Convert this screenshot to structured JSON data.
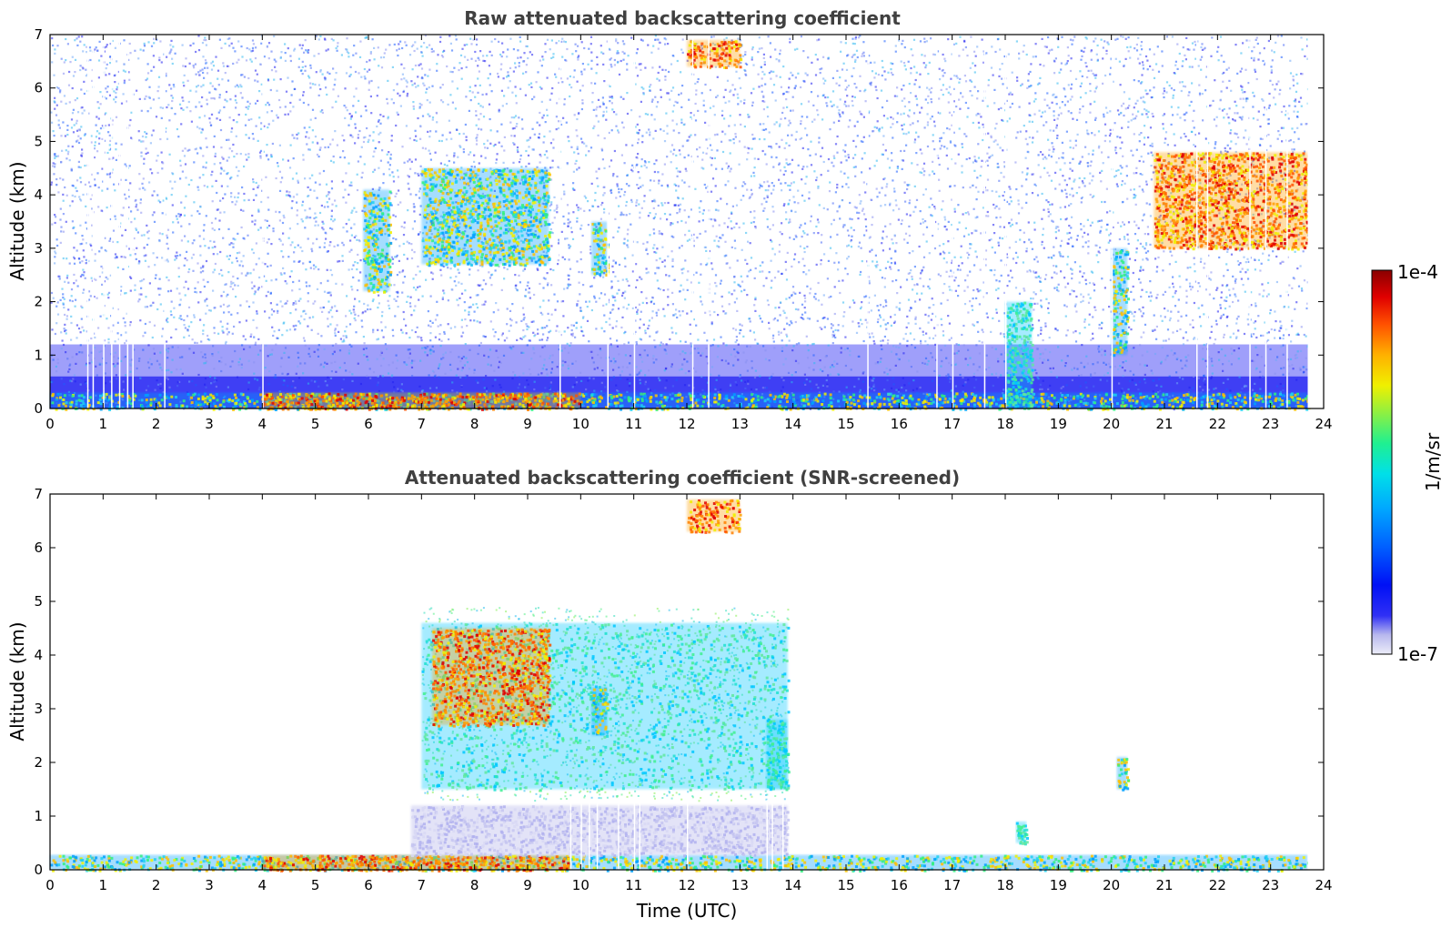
{
  "chart_data": [
    {
      "type": "heatmap",
      "title": "Raw attenuated backscattering coefficient",
      "xlabel": "",
      "ylabel": "Altitude (km)",
      "xlim": [
        0,
        24
      ],
      "ylim": [
        0,
        7
      ],
      "xticks": [
        "0",
        "1",
        "2",
        "3",
        "4",
        "5",
        "6",
        "7",
        "8",
        "9",
        "10",
        "11",
        "12",
        "13",
        "14",
        "15",
        "16",
        "17",
        "18",
        "19",
        "20",
        "21",
        "22",
        "23",
        "24"
      ],
      "yticks": [
        "0",
        "1",
        "2",
        "3",
        "4",
        "5",
        "6",
        "7"
      ],
      "features": [
        {
          "x0": 0,
          "x1": 23.7,
          "y0": 0,
          "y1": 0.3,
          "level": "high"
        },
        {
          "x0": 4,
          "x1": 10,
          "y0": 0,
          "y1": 0.3,
          "level": "very-high"
        },
        {
          "x0": 7,
          "x1": 9.4,
          "y0": 2.7,
          "y1": 4.5,
          "level": "high"
        },
        {
          "x0": 5.9,
          "x1": 6.4,
          "y0": 2.2,
          "y1": 4.1,
          "level": "high"
        },
        {
          "x0": 10.2,
          "x1": 10.5,
          "y0": 2.5,
          "y1": 3.5,
          "level": "high"
        },
        {
          "x0": 12,
          "x1": 13,
          "y0": 6.4,
          "y1": 6.9,
          "level": "very-high"
        },
        {
          "x0": 20,
          "x1": 20.3,
          "y0": 1.0,
          "y1": 3.0,
          "level": "high"
        },
        {
          "x0": 18,
          "x1": 18.5,
          "y0": 0,
          "y1": 2.0,
          "level": "medium"
        },
        {
          "x0": 20.8,
          "x1": 23.7,
          "y0": 3.0,
          "y1": 4.8,
          "level": "very-high"
        }
      ]
    },
    {
      "type": "heatmap",
      "title": "Attenuated backscattering coefficient (SNR-screened)",
      "xlabel": "Time (UTC)",
      "ylabel": "Altitude (km)",
      "xlim": [
        0,
        24
      ],
      "ylim": [
        0,
        7
      ],
      "xticks": [
        "0",
        "1",
        "2",
        "3",
        "4",
        "5",
        "6",
        "7",
        "8",
        "9",
        "10",
        "11",
        "12",
        "13",
        "14",
        "15",
        "16",
        "17",
        "18",
        "19",
        "20",
        "21",
        "22",
        "23",
        "24"
      ],
      "yticks": [
        "0",
        "1",
        "2",
        "3",
        "4",
        "5",
        "6",
        "7"
      ],
      "features": [
        {
          "x0": 0,
          "x1": 23.7,
          "y0": 0,
          "y1": 0.28,
          "level": "high"
        },
        {
          "x0": 4,
          "x1": 9.8,
          "y0": 0,
          "y1": 0.28,
          "level": "very-high"
        },
        {
          "x0": 6.8,
          "x1": 13.9,
          "y0": 0.28,
          "y1": 1.2,
          "level": "low"
        },
        {
          "x0": 7,
          "x1": 13.9,
          "y0": 1.5,
          "y1": 4.6,
          "level": "medium"
        },
        {
          "x0": 7.2,
          "x1": 9.4,
          "y0": 2.7,
          "y1": 4.5,
          "level": "very-high"
        },
        {
          "x0": 10.2,
          "x1": 10.5,
          "y0": 2.5,
          "y1": 3.4,
          "level": "high"
        },
        {
          "x0": 12,
          "x1": 13,
          "y0": 6.3,
          "y1": 6.9,
          "level": "very-high"
        },
        {
          "x0": 13.5,
          "x1": 13.9,
          "y0": 1.5,
          "y1": 2.8,
          "level": "medium"
        },
        {
          "x0": 20.1,
          "x1": 20.3,
          "y0": 1.5,
          "y1": 2.1,
          "level": "high"
        },
        {
          "x0": 18.2,
          "x1": 18.4,
          "y0": 0.5,
          "y1": 0.9,
          "level": "medium"
        }
      ]
    }
  ],
  "colorbar": {
    "label": "1/m/sr",
    "max_label": "1e-4",
    "min_label": "1e-7",
    "colormap": [
      "#e8e8f8",
      "#c8c8f0",
      "#9090f0",
      "#4040f8",
      "#0000f0",
      "#0040ff",
      "#0090ff",
      "#00d0ff",
      "#00f0c0",
      "#40f080",
      "#a0f040",
      "#f0f000",
      "#ffc000",
      "#ff8000",
      "#ff3000",
      "#e00000",
      "#a00000"
    ]
  }
}
